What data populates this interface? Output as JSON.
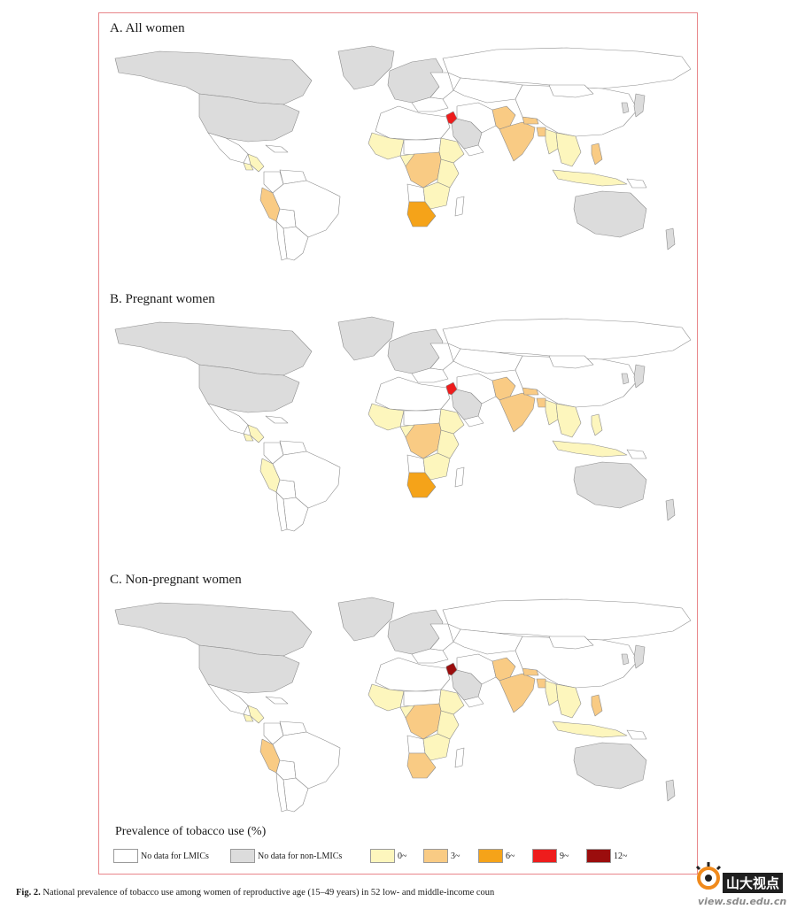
{
  "panels": [
    {
      "title": "A. All women",
      "countries": {
        "greenland": "nonlmic",
        "north_america": "nonlmic",
        "usa": "nonlmic",
        "mexico": "nodata",
        "central_america": "c0",
        "guatemala": "c0",
        "caribbean": "nodata",
        "colombia": "nodata",
        "venezuela": "nodata",
        "peru": "c3",
        "bolivia": "nodata",
        "brazil": "nodata",
        "argentina": "nodata",
        "chile": "nodata",
        "europe": "nonlmic",
        "eastern_europe": "nodata",
        "russia": "nodata",
        "kazakhstan": "nodata",
        "turkey": "nodata",
        "jordan": "c9",
        "saudi": "nonlmic",
        "iran": "nodata",
        "yemen": "nodata",
        "north_africa": "nodata",
        "west_africa": "c0",
        "sahel": "nodata",
        "nigeria": "c0",
        "ethiopia": "c0",
        "central_africa": "c3",
        "east_africa": "c0",
        "angola": "nodata",
        "southern_africa": "c0",
        "south_africa": "c6",
        "madagascar": "nodata",
        "pakistan": "c3",
        "india": "c3",
        "bangladesh": "c3",
        "nepal": "c3",
        "china": "nodata",
        "mongolia": "nodata",
        "southeast_asia": "c0",
        "myanmar": "c0",
        "indonesia": "c0",
        "philippines": "c3",
        "png": "nodata",
        "japan": "nonlmic",
        "korea": "nonlmic",
        "australia": "nonlmic",
        "new_zealand": "nonlmic"
      }
    },
    {
      "title": "B. Pregnant women",
      "countries": {
        "greenland": "nonlmic",
        "north_america": "nonlmic",
        "usa": "nonlmic",
        "mexico": "nodata",
        "central_america": "c0",
        "guatemala": "c0",
        "caribbean": "nodata",
        "colombia": "nodata",
        "venezuela": "nodata",
        "peru": "c0",
        "bolivia": "nodata",
        "brazil": "nodata",
        "argentina": "nodata",
        "chile": "nodata",
        "europe": "nonlmic",
        "eastern_europe": "nodata",
        "russia": "nodata",
        "kazakhstan": "nodata",
        "turkey": "nodata",
        "jordan": "c9",
        "saudi": "nonlmic",
        "iran": "nodata",
        "yemen": "nodata",
        "north_africa": "nodata",
        "west_africa": "c0",
        "sahel": "nodata",
        "nigeria": "c0",
        "ethiopia": "c0",
        "central_africa": "c3",
        "east_africa": "c0",
        "angola": "nodata",
        "southern_africa": "c0",
        "south_africa": "c6",
        "madagascar": "nodata",
        "pakistan": "c3",
        "india": "c3",
        "bangladesh": "c3",
        "nepal": "c3",
        "china": "nodata",
        "mongolia": "nodata",
        "southeast_asia": "c0",
        "myanmar": "c0",
        "indonesia": "c0",
        "philippines": "c0",
        "png": "nodata",
        "japan": "nonlmic",
        "korea": "nonlmic",
        "australia": "nonlmic",
        "new_zealand": "nonlmic"
      }
    },
    {
      "title": "C. Non-pregnant women",
      "countries": {
        "greenland": "nonlmic",
        "north_america": "nonlmic",
        "usa": "nonlmic",
        "mexico": "nodata",
        "central_america": "c0",
        "guatemala": "c0",
        "caribbean": "nodata",
        "colombia": "nodata",
        "venezuela": "nodata",
        "peru": "c3",
        "bolivia": "nodata",
        "brazil": "nodata",
        "argentina": "nodata",
        "chile": "nodata",
        "europe": "nonlmic",
        "eastern_europe": "nodata",
        "russia": "nodata",
        "kazakhstan": "nodata",
        "turkey": "nodata",
        "jordan": "c12",
        "saudi": "nonlmic",
        "iran": "nodata",
        "yemen": "nodata",
        "north_africa": "nodata",
        "west_africa": "c0",
        "sahel": "nodata",
        "nigeria": "c0",
        "ethiopia": "c0",
        "central_africa": "c3",
        "east_africa": "c0",
        "angola": "nodata",
        "southern_africa": "c0",
        "south_africa": "c3",
        "madagascar": "nodata",
        "pakistan": "c3",
        "india": "c3",
        "bangladesh": "c3",
        "nepal": "c3",
        "china": "nodata",
        "mongolia": "nodata",
        "southeast_asia": "c0",
        "myanmar": "c0",
        "indonesia": "c0",
        "philippines": "c3",
        "png": "nodata",
        "japan": "nonlmic",
        "korea": "nonlmic",
        "australia": "nonlmic",
        "new_zealand": "nonlmic"
      }
    }
  ],
  "legend": {
    "title": "Prevalence of tobacco use (%)",
    "items": [
      {
        "key": "nodata",
        "label": "No data for LMICs",
        "color": "#ffffff"
      },
      {
        "key": "nonlmic",
        "label": "No data for non-LMICs",
        "color": "#dcdcdc"
      },
      {
        "key": "c0",
        "label": "0~",
        "color": "#fdf6bd"
      },
      {
        "key": "c3",
        "label": "3~",
        "color": "#f9cb84"
      },
      {
        "key": "c6",
        "label": "6~",
        "color": "#f5a319"
      },
      {
        "key": "c9",
        "label": "9~",
        "color": "#ee1c1c"
      },
      {
        "key": "c12",
        "label": "12~",
        "color": "#9b0d0d"
      }
    ]
  },
  "caption": {
    "label": "Fig. 2.",
    "text": "National prevalence of tobacco use among women of reproductive age (15–49 years) in 52 low- and middle-income coun"
  },
  "watermark": {
    "name": "山大视点",
    "url": "view.sdu.edu.cn"
  }
}
